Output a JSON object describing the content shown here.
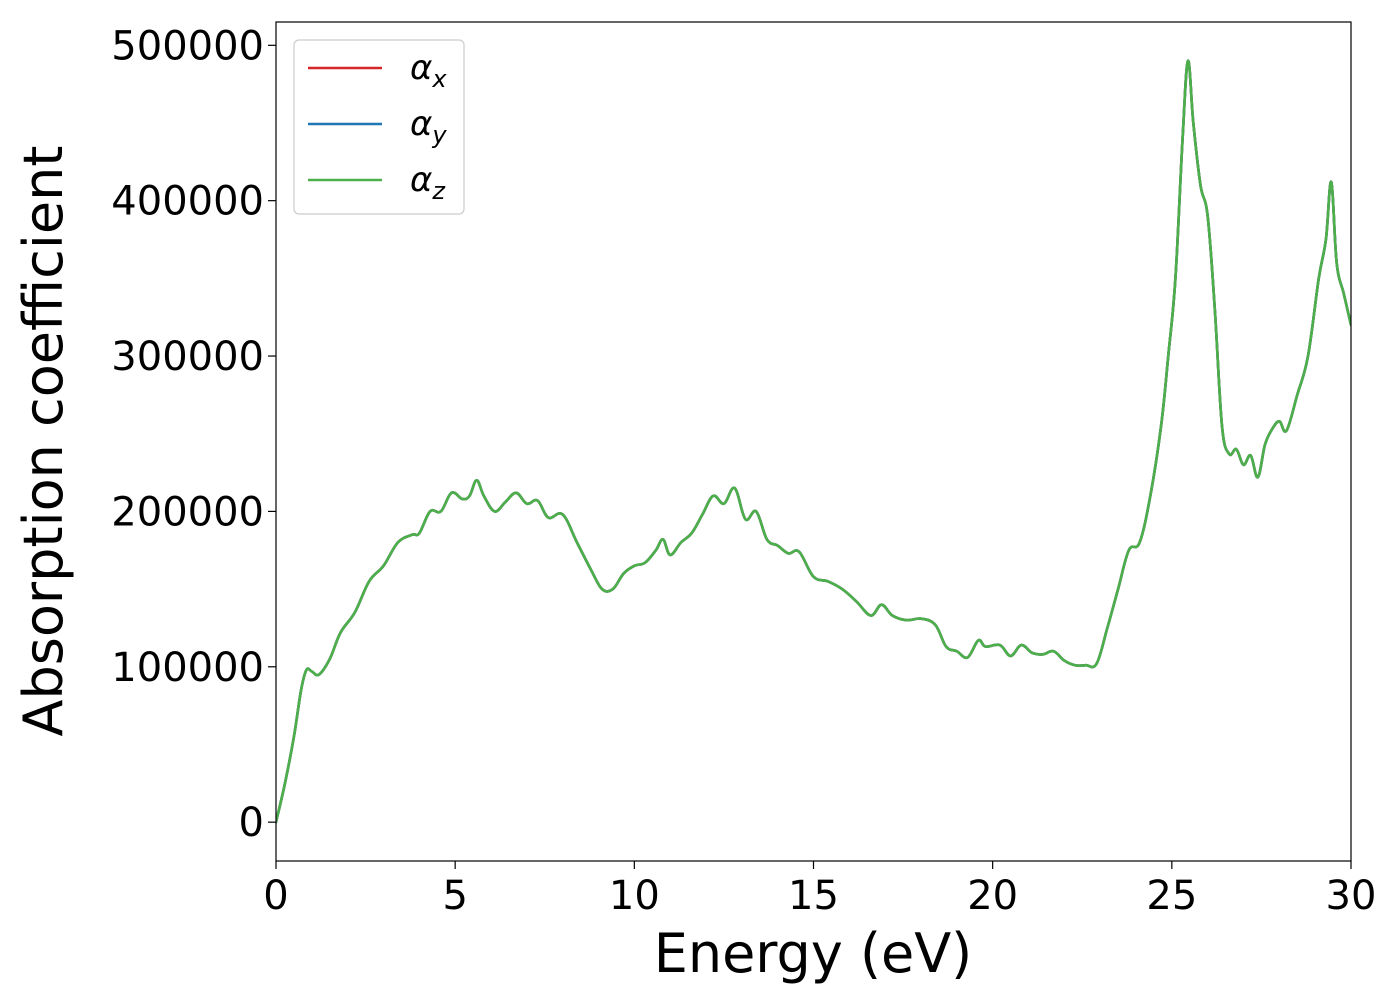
{
  "chart_data": {
    "type": "line",
    "xlabel": "Energy (eV)",
    "ylabel": "Absorption coefficient",
    "xlim": [
      0,
      30
    ],
    "ylim": [
      -25000,
      515000
    ],
    "xticks": [
      0,
      5,
      10,
      15,
      20,
      25,
      30
    ],
    "yticks": [
      0,
      100000,
      200000,
      300000,
      400000,
      500000
    ],
    "grid": false,
    "legend_position": "top-left",
    "legend": [
      {
        "symbol": "α",
        "sub": "x",
        "color": "#d62728"
      },
      {
        "symbol": "α",
        "sub": "y",
        "color": "#1f77b4"
      },
      {
        "symbol": "α",
        "sub": "z",
        "color": "#4daf4a"
      }
    ],
    "series": [
      {
        "color": "#d62728",
        "x": [
          0,
          0.25,
          0.5,
          0.7,
          0.85,
          1.0,
          1.2,
          1.5,
          1.8,
          2.2,
          2.6,
          3.0,
          3.4,
          3.8,
          4.0,
          4.3,
          4.6,
          4.9,
          5.2,
          5.4,
          5.6,
          5.8,
          6.1,
          6.4,
          6.7,
          7.0,
          7.3,
          7.6,
          8.0,
          8.4,
          8.8,
          9.1,
          9.4,
          9.7,
          10.0,
          10.3,
          10.6,
          10.8,
          11.0,
          11.3,
          11.6,
          11.9,
          12.2,
          12.5,
          12.8,
          13.1,
          13.4,
          13.7,
          14.0,
          14.3,
          14.6,
          15.0,
          15.4,
          15.8,
          16.2,
          16.6,
          16.9,
          17.2,
          17.6,
          18.0,
          18.4,
          18.7,
          19.0,
          19.3,
          19.6,
          19.8,
          20.2,
          20.5,
          20.8,
          21.1,
          21.4,
          21.7,
          22.0,
          22.3,
          22.6,
          22.9,
          23.2,
          23.5,
          23.8,
          24.1,
          24.4,
          24.7,
          24.9,
          25.1,
          25.3,
          25.45,
          25.6,
          25.8,
          26.0,
          26.2,
          26.4,
          26.6,
          26.8,
          27.0,
          27.2,
          27.4,
          27.6,
          27.8,
          28.0,
          28.2,
          28.5,
          28.8,
          29.1,
          29.3,
          29.45,
          29.6,
          29.8,
          30.0
        ],
        "y": [
          0,
          25000,
          55000,
          85000,
          98000,
          97000,
          95000,
          105000,
          122000,
          135000,
          155000,
          165000,
          180000,
          185000,
          186000,
          200000,
          200000,
          212000,
          208000,
          210000,
          220000,
          210000,
          200000,
          206000,
          212000,
          205000,
          207000,
          196000,
          198000,
          180000,
          162000,
          150000,
          150000,
          160000,
          165000,
          167000,
          175000,
          182000,
          172000,
          180000,
          186000,
          198000,
          210000,
          205000,
          215000,
          195000,
          200000,
          182000,
          178000,
          173000,
          174000,
          158000,
          155000,
          150000,
          142000,
          133000,
          140000,
          133000,
          130000,
          131000,
          127000,
          113000,
          110000,
          106000,
          117000,
          113000,
          114000,
          107000,
          114000,
          109000,
          108000,
          110000,
          104000,
          101000,
          101000,
          102000,
          125000,
          150000,
          175000,
          180000,
          210000,
          255000,
          300000,
          350000,
          440000,
          490000,
          450000,
          410000,
          390000,
          330000,
          255000,
          237000,
          240000,
          230000,
          236000,
          222000,
          243000,
          253000,
          258000,
          252000,
          275000,
          300000,
          350000,
          375000,
          412000,
          360000,
          340000,
          320000
        ]
      },
      {
        "color": "#1f77b4",
        "x": [
          0,
          0.25,
          0.5,
          0.7,
          0.85,
          1.0,
          1.2,
          1.5,
          1.8,
          2.2,
          2.6,
          3.0,
          3.4,
          3.8,
          4.0,
          4.3,
          4.6,
          4.9,
          5.2,
          5.4,
          5.6,
          5.8,
          6.1,
          6.4,
          6.7,
          7.0,
          7.3,
          7.6,
          8.0,
          8.4,
          8.8,
          9.1,
          9.4,
          9.7,
          10.0,
          10.3,
          10.6,
          10.8,
          11.0,
          11.3,
          11.6,
          11.9,
          12.2,
          12.5,
          12.8,
          13.1,
          13.4,
          13.7,
          14.0,
          14.3,
          14.6,
          15.0,
          15.4,
          15.8,
          16.2,
          16.6,
          16.9,
          17.2,
          17.6,
          18.0,
          18.4,
          18.7,
          19.0,
          19.3,
          19.6,
          19.8,
          20.2,
          20.5,
          20.8,
          21.1,
          21.4,
          21.7,
          22.0,
          22.3,
          22.6,
          22.9,
          23.2,
          23.5,
          23.8,
          24.1,
          24.4,
          24.7,
          24.9,
          25.1,
          25.3,
          25.45,
          25.6,
          25.8,
          26.0,
          26.2,
          26.4,
          26.6,
          26.8,
          27.0,
          27.2,
          27.4,
          27.6,
          27.8,
          28.0,
          28.2,
          28.5,
          28.8,
          29.1,
          29.3,
          29.45,
          29.6,
          29.8,
          30.0
        ],
        "y": [
          0,
          25000,
          55000,
          85000,
          98000,
          97000,
          95000,
          105000,
          122000,
          135000,
          155000,
          165000,
          180000,
          185000,
          186000,
          200000,
          200000,
          212000,
          208000,
          210000,
          220000,
          210000,
          200000,
          206000,
          212000,
          205000,
          207000,
          196000,
          198000,
          180000,
          162000,
          150000,
          150000,
          160000,
          165000,
          167000,
          175000,
          182000,
          172000,
          180000,
          186000,
          198000,
          210000,
          205000,
          215000,
          195000,
          200000,
          182000,
          178000,
          173000,
          174000,
          158000,
          155000,
          150000,
          142000,
          133000,
          140000,
          133000,
          130000,
          131000,
          127000,
          113000,
          110000,
          106000,
          117000,
          113000,
          114000,
          107000,
          114000,
          109000,
          108000,
          110000,
          104000,
          101000,
          101000,
          102000,
          125000,
          150000,
          175000,
          180000,
          210000,
          255000,
          300000,
          350000,
          440000,
          490000,
          450000,
          410000,
          390000,
          330000,
          255000,
          237000,
          240000,
          230000,
          236000,
          222000,
          243000,
          253000,
          258000,
          252000,
          275000,
          300000,
          350000,
          375000,
          412000,
          360000,
          340000,
          320000
        ]
      },
      {
        "color": "#4daf4a",
        "x": [
          0,
          0.25,
          0.5,
          0.7,
          0.85,
          1.0,
          1.2,
          1.5,
          1.8,
          2.2,
          2.6,
          3.0,
          3.4,
          3.8,
          4.0,
          4.3,
          4.6,
          4.9,
          5.2,
          5.4,
          5.6,
          5.8,
          6.1,
          6.4,
          6.7,
          7.0,
          7.3,
          7.6,
          8.0,
          8.4,
          8.8,
          9.1,
          9.4,
          9.7,
          10.0,
          10.3,
          10.6,
          10.8,
          11.0,
          11.3,
          11.6,
          11.9,
          12.2,
          12.5,
          12.8,
          13.1,
          13.4,
          13.7,
          14.0,
          14.3,
          14.6,
          15.0,
          15.4,
          15.8,
          16.2,
          16.6,
          16.9,
          17.2,
          17.6,
          18.0,
          18.4,
          18.7,
          19.0,
          19.3,
          19.6,
          19.8,
          20.2,
          20.5,
          20.8,
          21.1,
          21.4,
          21.7,
          22.0,
          22.3,
          22.6,
          22.9,
          23.2,
          23.5,
          23.8,
          24.1,
          24.4,
          24.7,
          24.9,
          25.1,
          25.3,
          25.45,
          25.6,
          25.8,
          26.0,
          26.2,
          26.4,
          26.6,
          26.8,
          27.0,
          27.2,
          27.4,
          27.6,
          27.8,
          28.0,
          28.2,
          28.5,
          28.8,
          29.1,
          29.3,
          29.45,
          29.6,
          29.8,
          30.0
        ],
        "y": [
          0,
          25000,
          55000,
          85000,
          98000,
          97000,
          95000,
          105000,
          122000,
          135000,
          155000,
          165000,
          180000,
          185000,
          186000,
          200000,
          200000,
          212000,
          208000,
          210000,
          220000,
          210000,
          200000,
          206000,
          212000,
          205000,
          207000,
          196000,
          198000,
          180000,
          162000,
          150000,
          150000,
          160000,
          165000,
          167000,
          175000,
          182000,
          172000,
          180000,
          186000,
          198000,
          210000,
          205000,
          215000,
          195000,
          200000,
          182000,
          178000,
          173000,
          174000,
          158000,
          155000,
          150000,
          142000,
          133000,
          140000,
          133000,
          130000,
          131000,
          127000,
          113000,
          110000,
          106000,
          117000,
          113000,
          114000,
          107000,
          114000,
          109000,
          108000,
          110000,
          104000,
          101000,
          101000,
          102000,
          125000,
          150000,
          175000,
          180000,
          210000,
          255000,
          300000,
          350000,
          440000,
          490000,
          450000,
          410000,
          390000,
          330000,
          255000,
          237000,
          240000,
          230000,
          236000,
          222000,
          243000,
          253000,
          258000,
          252000,
          275000,
          300000,
          350000,
          375000,
          412000,
          360000,
          340000,
          320000
        ]
      }
    ]
  }
}
